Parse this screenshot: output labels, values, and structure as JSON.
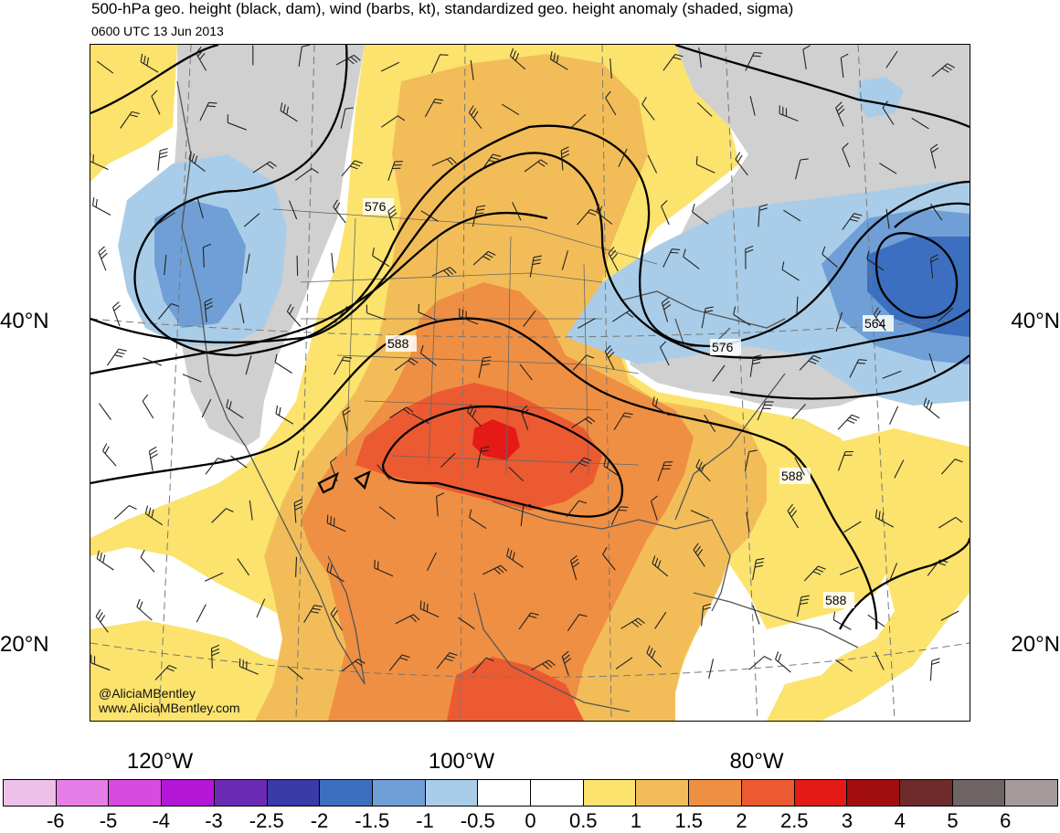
{
  "title": "500-hPa geo. height (black, dam), wind (barbs, kt), standardized geo. height anomaly (shaded, sigma)",
  "valid_time": "0600 UTC 13 Jun 2013",
  "lat_labels": [
    "40°N",
    "20°N"
  ],
  "lon_labels": [
    "120°W",
    "100°W",
    "80°W"
  ],
  "contour_labels": [
    "576",
    "588",
    "564",
    "576",
    "588",
    "588"
  ],
  "credits": {
    "handle": "@AliciaMBentley",
    "website": "www.AliciaMBentley.com"
  },
  "colorbar": {
    "labels": [
      "-6",
      "-5",
      "-4",
      "-3",
      "-2.5",
      "-2",
      "-1.5",
      "-1",
      "-0.5",
      "0",
      "0.5",
      "1",
      "1.5",
      "2",
      "2.5",
      "3",
      "4",
      "5",
      "6"
    ],
    "colors": [
      "#ecc0e8",
      "#e67ee8",
      "#d94ae0",
      "#b515d6",
      "#6a2ab5",
      "#3a3aa8",
      "#3c6fc0",
      "#6f9fd6",
      "#a9cde8",
      "#ffffff",
      "#ffffff",
      "#fbe36d",
      "#f2bd58",
      "#ef8f43",
      "#ec5a31",
      "#e51a17",
      "#a20d0d",
      "#6f2a2a",
      "#6e6464",
      "#a59a9a"
    ]
  },
  "colors": {
    "land": "#d0d0d0",
    "water": "#ffffff",
    "contour": "#000000"
  }
}
